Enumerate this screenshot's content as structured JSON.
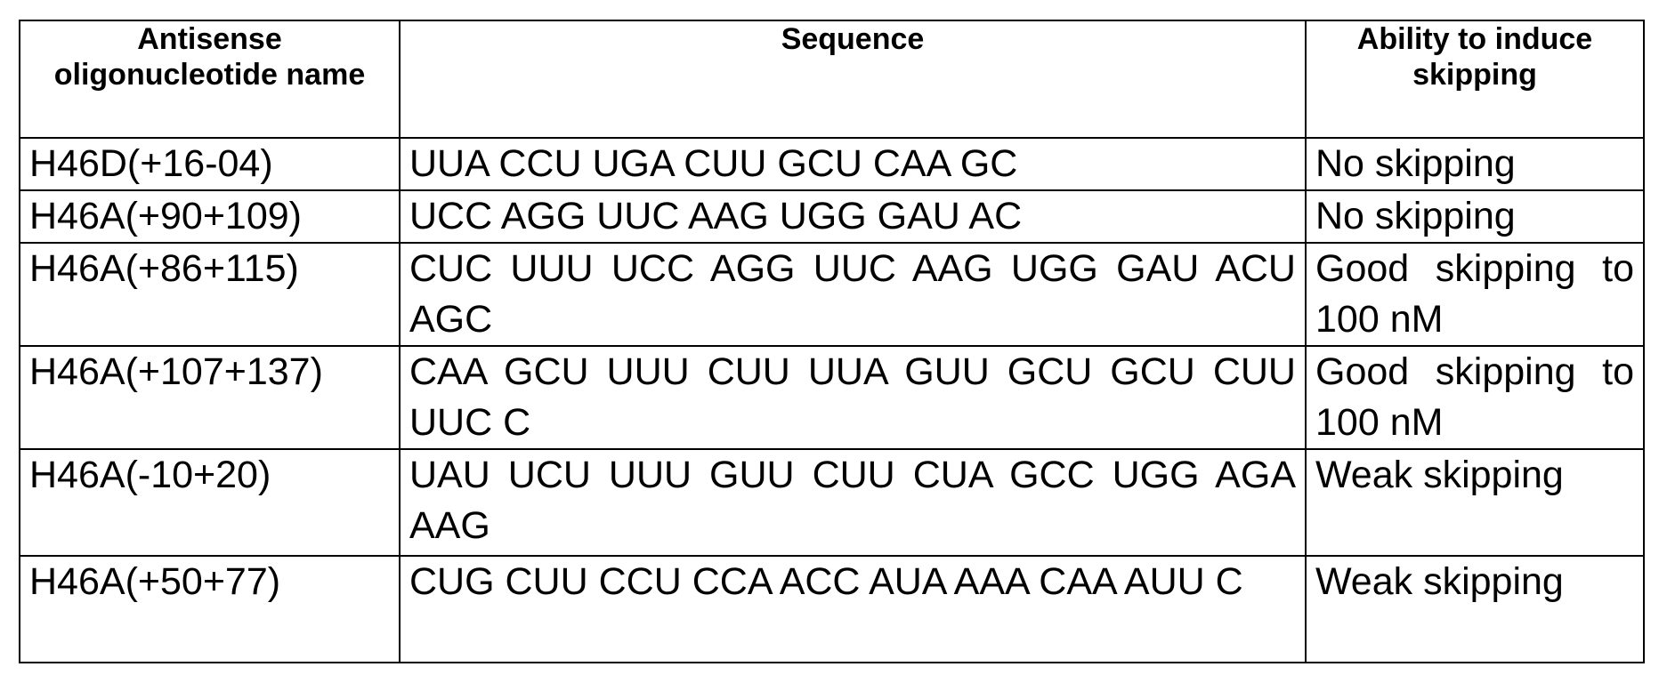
{
  "table": {
    "header": [
      "Antisense oligonucleotide name",
      "Sequence",
      "Ability to induce skipping"
    ],
    "rows": [
      [
        "H46D(+16-04)",
        "UUA CCU UGA CUU GCU CAA GC",
        "No skipping"
      ],
      [
        "H46A(+90+109)",
        "UCC AGG UUC AAG UGG GAU AC",
        "No skipping"
      ],
      [
        "H46A(+86+115)",
        "CUC UUU UCC AGG UUC AAG UGG GAU ACU AGC",
        "Good skipping to 100 nM"
      ],
      [
        "H46A(+107+137)",
        "CAA GCU UUU CUU UUA GUU GCU GCU CUU UUC C",
        "Good skipping to 100 nM"
      ],
      [
        "H46A(-10+20)",
        "UAU UCU UUU GUU CUU CUA GCC UGG AGA AAG",
        "Weak skipping"
      ],
      [
        "H46A(+50+77)",
        "CUG CUU CCU CCA ACC AUA AAA CAA AUU C",
        "Weak skipping"
      ]
    ]
  }
}
